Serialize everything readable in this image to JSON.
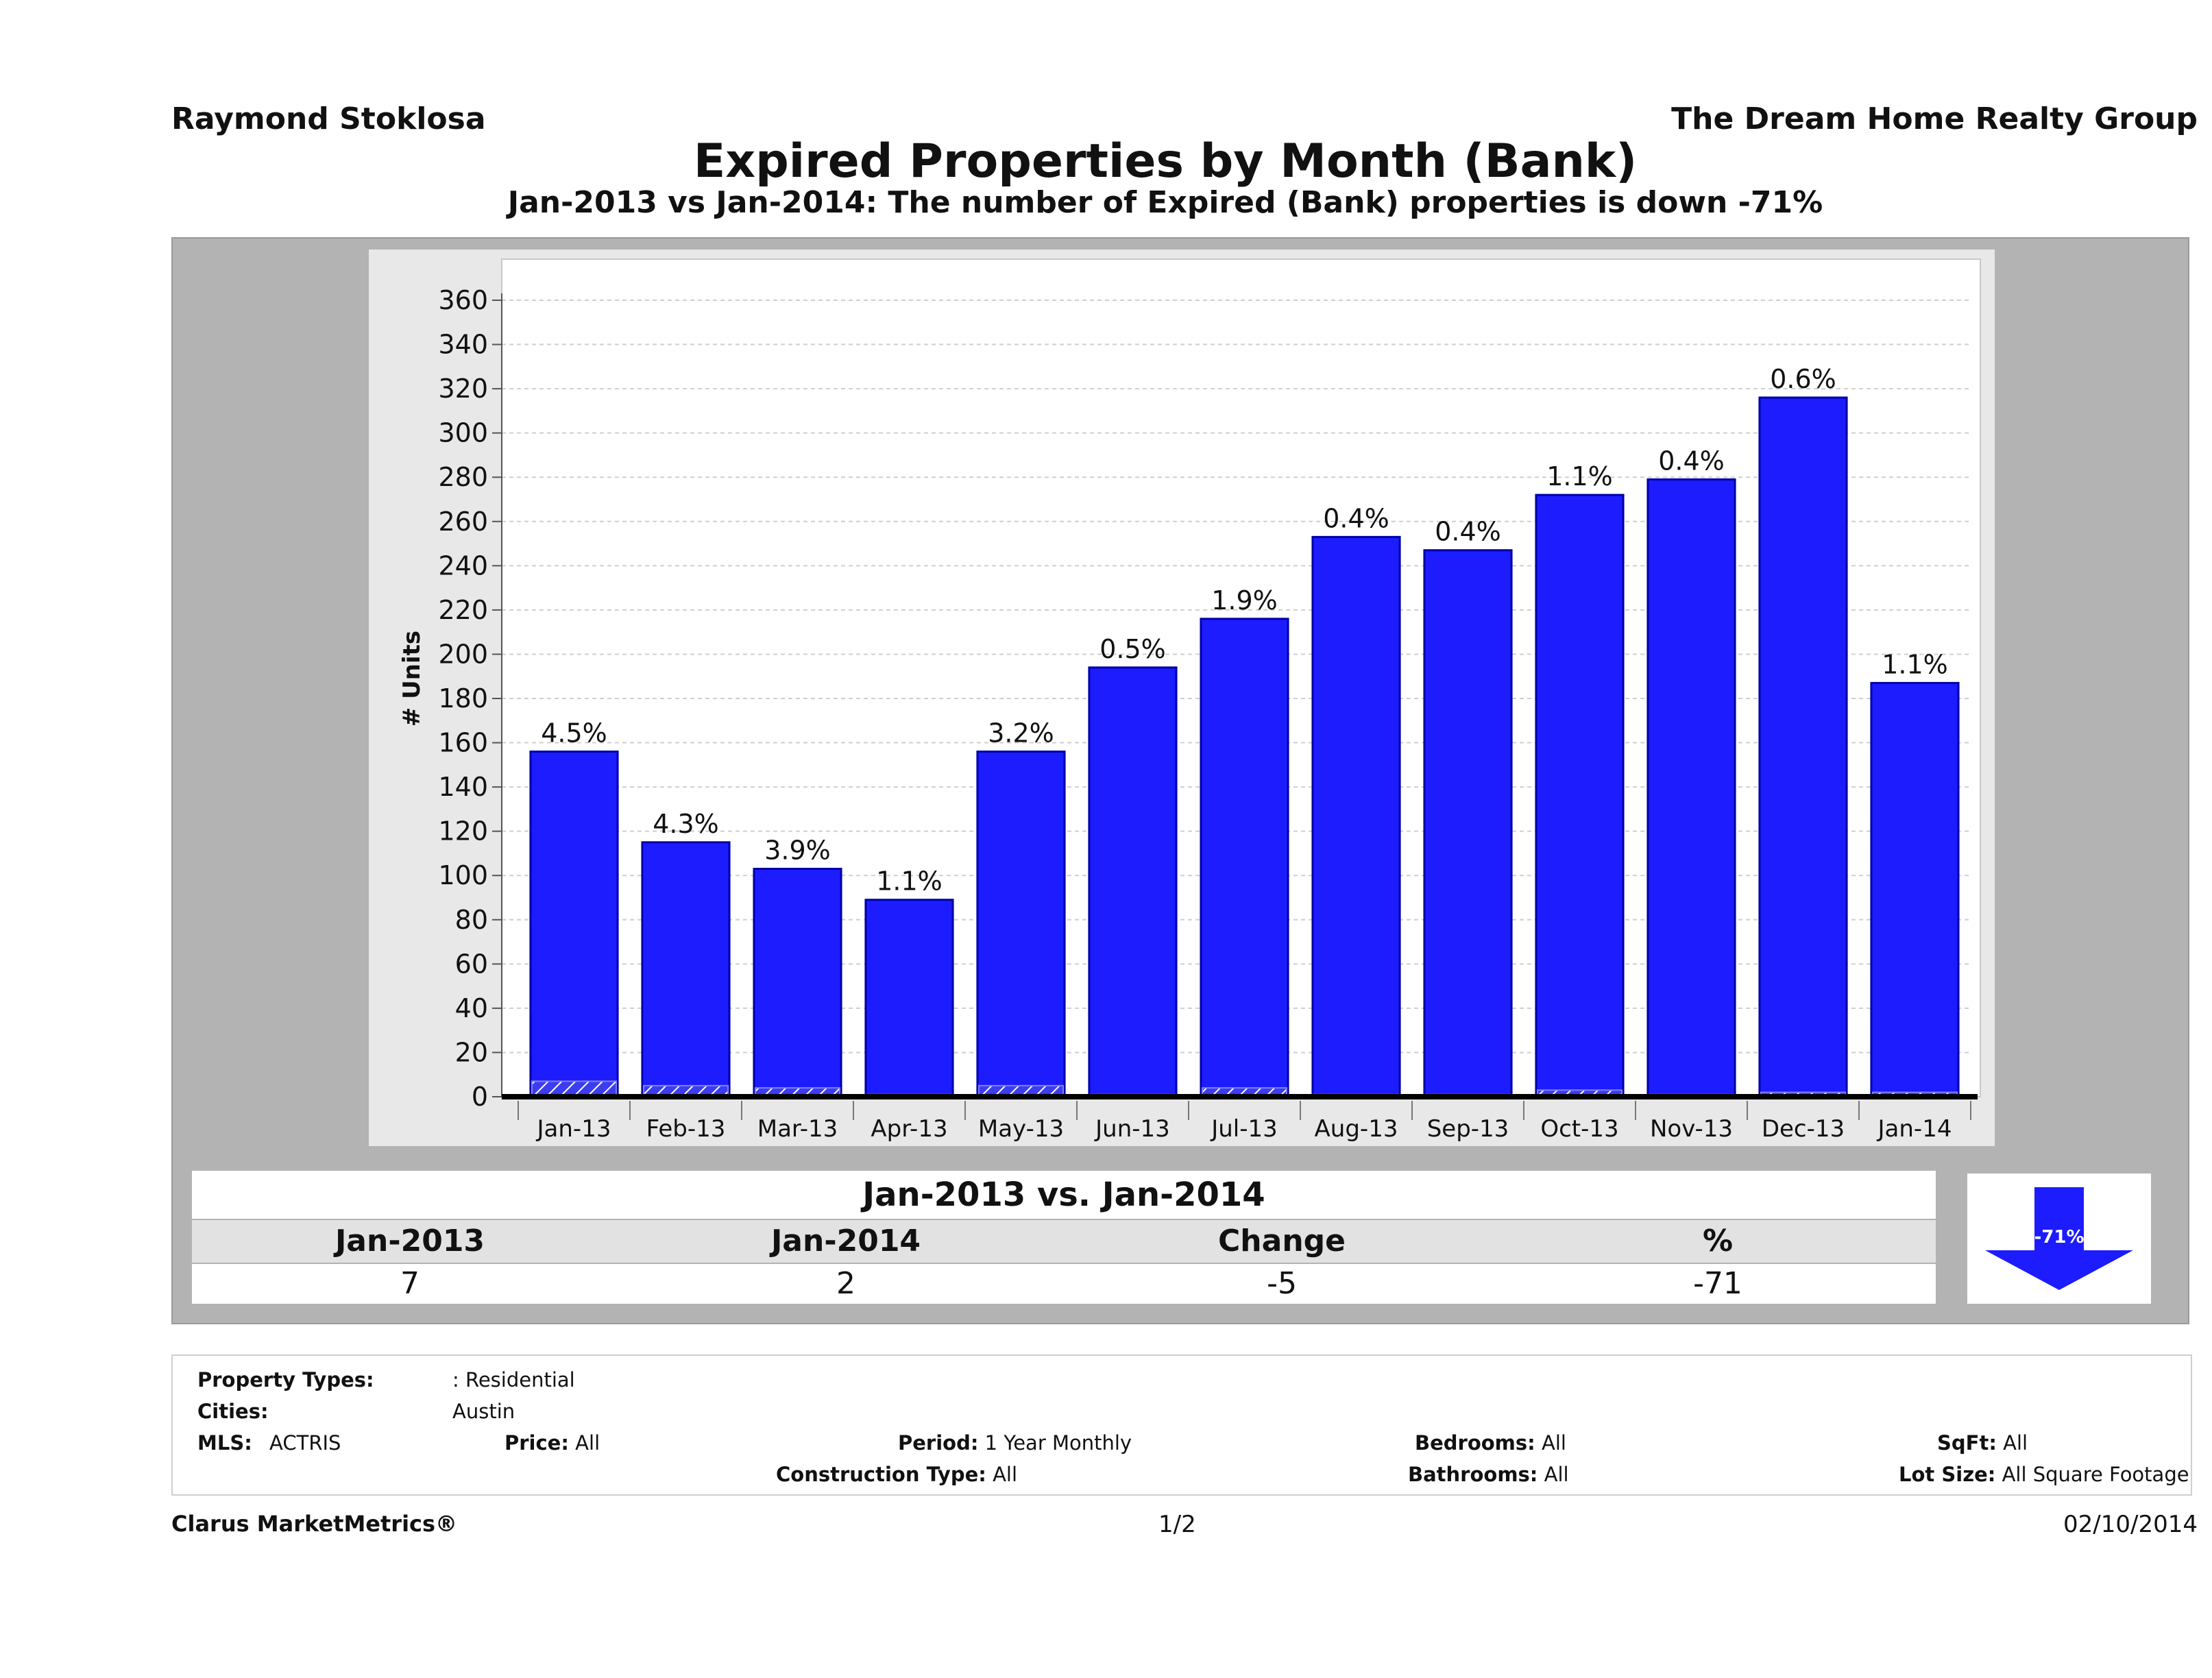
{
  "header": {
    "agent": "Raymond Stoklosa",
    "company": "The Dream Home Realty Group"
  },
  "chart_data": {
    "type": "bar",
    "title": "Expired Properties by Month (Bank)",
    "subtitle": "Jan-2013 vs Jan-2014: The number of Expired (Bank)  properties is down -71%",
    "ylabel": "# Units",
    "xlabel": "",
    "ylim": [
      0,
      360
    ],
    "yticks": [
      0,
      20,
      40,
      60,
      80,
      100,
      120,
      140,
      160,
      180,
      200,
      220,
      240,
      260,
      280,
      300,
      320,
      340,
      360
    ],
    "grid": true,
    "categories": [
      "Jan-13",
      "Feb-13",
      "Mar-13",
      "Apr-13",
      "May-13",
      "Jun-13",
      "Jul-13",
      "Aug-13",
      "Sep-13",
      "Oct-13",
      "Nov-13",
      "Dec-13",
      "Jan-14"
    ],
    "series": [
      {
        "name": "",
        "values": [
          156,
          115,
          103,
          89,
          156,
          194,
          216,
          253,
          247,
          272,
          279,
          316,
          187
        ]
      },
      {
        "name": "",
        "values": [
          7,
          5,
          4,
          1,
          5,
          1,
          4,
          1,
          1,
          3,
          1,
          2,
          2
        ]
      }
    ],
    "data_labels": [
      "4.5%",
      "4.3%",
      "3.9%",
      "1.1%",
      "3.2%",
      "0.5%",
      "1.9%",
      "0.4%",
      "0.4%",
      "1.1%",
      "0.4%",
      "0.6%",
      "1.1%"
    ],
    "colors": {
      "bar": "#1c1cff",
      "bar_stroke": "#0000a8",
      "bank": "#3c3cf0",
      "bank_hatch": "#ffffff",
      "grid": "#cfcfcf"
    }
  },
  "comparison": {
    "title": "Jan-2013 vs. Jan-2014",
    "headers": [
      "Jan-2013",
      "Jan-2014",
      "Change",
      "%"
    ],
    "values": [
      "7",
      "2",
      "-5",
      "-71"
    ],
    "badge": "-71%",
    "direction": "down"
  },
  "filters": {
    "property_types_label": "Property Types:",
    "property_types": ": Residential",
    "cities_label": "Cities:",
    "cities": "Austin",
    "mls_label": "MLS:",
    "mls": "ACTRIS",
    "price_label": "Price:",
    "price": "All",
    "period_label": "Period:",
    "period": "1 Year Monthly",
    "construction_label": "Construction Type:",
    "construction": "All",
    "bedrooms_label": "Bedrooms:",
    "bedrooms": "All",
    "bathrooms_label": "Bathrooms:",
    "bathrooms": "All",
    "sqft_label": "SqFt:",
    "sqft": "All",
    "lot_label": "Lot Size:",
    "lot": "All Square Footage"
  },
  "footer": {
    "brand": "Clarus MarketMetrics®",
    "page": "1/2",
    "date": "02/10/2014"
  }
}
